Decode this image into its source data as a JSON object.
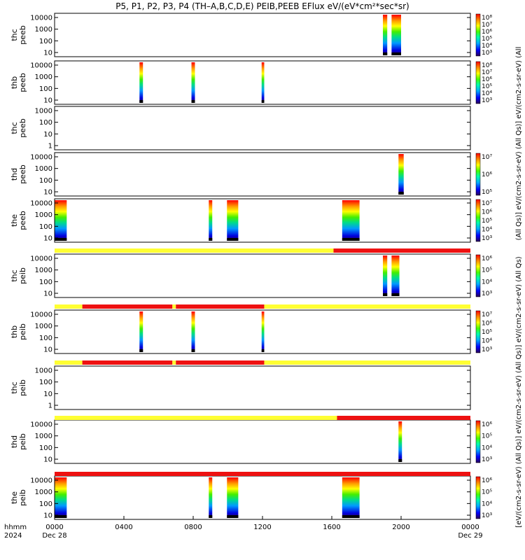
{
  "title": "P5, P1, P2, P3, P4 (TH–A,B,C,D,E) PEIB,PEEB EFlux eV/(eV*cm²*sec*sr)",
  "side_label_top": "(All Qs)] eV/(cm2-s-sr-eV) (All Qs)] eV/(cm2-s-sr-eV) (All",
  "side_label_bottom": "[eV/(cm2-s-sr-eV) (All Qs)] eV/(cm2-s-sr-eV) (All Qs)] eV/(cm2-s-sr-eV) (All Qs)",
  "colors": {
    "flag_yellow": "#ffff33",
    "flag_red": "#ee1111"
  },
  "chart_data": {
    "type": "heatmap",
    "x_ticks": [
      "0000",
      "0400",
      "0800",
      "1200",
      "1600",
      "2000",
      "0000"
    ],
    "x_range_hours": [
      0,
      24
    ],
    "x_date_labels": {
      "start": "Dec 28",
      "end": "Dec 29"
    },
    "x_corner_labels": [
      "hhmm",
      "2024"
    ],
    "panels": [
      {
        "name": "thc peeb",
        "ylabel": [
          "thc",
          "peeb"
        ],
        "yticks": [
          "10000",
          "1000",
          "100",
          "10"
        ],
        "cb_ticks": [
          "10⁸",
          "10⁷",
          "10⁶",
          "10⁵",
          "10⁴",
          "10³"
        ],
        "intervals": [
          {
            "start": 18.95,
            "end": 19.2
          },
          {
            "start": 19.45,
            "end": 20.0
          }
        ]
      },
      {
        "name": "thb peeb",
        "ylabel": [
          "thb",
          "peeb"
        ],
        "yticks": [
          "10000",
          "1000",
          "100",
          "10"
        ],
        "cb_ticks": [
          "10⁸",
          "10⁷",
          "10⁶",
          "10⁵",
          "10⁴",
          "10³"
        ],
        "intervals": [
          {
            "start": 4.9,
            "end": 5.1
          },
          {
            "start": 7.9,
            "end": 8.1
          },
          {
            "start": 11.95,
            "end": 12.1
          }
        ]
      },
      {
        "name": "thc peeb 2",
        "ylabel": [
          "thc",
          "peeb"
        ],
        "yticks": [
          "1000",
          "100",
          "10",
          "1"
        ],
        "cb_ticks": [],
        "intervals": []
      },
      {
        "name": "thd peeb",
        "ylabel": [
          "thd",
          "peeb"
        ],
        "yticks": [
          "10000",
          "1000",
          "100",
          "10"
        ],
        "cb_ticks": [
          "10⁷",
          "10⁶",
          "10⁵"
        ],
        "intervals": [
          {
            "start": 19.85,
            "end": 20.15
          }
        ]
      },
      {
        "name": "the peeb",
        "ylabel": [
          "the",
          "peeb"
        ],
        "yticks": [
          "10000",
          "1000",
          "100",
          "10"
        ],
        "cb_ticks": [
          "10⁷",
          "10⁶",
          "10⁵",
          "10⁴",
          "10³"
        ],
        "intervals": [
          {
            "start": 0.0,
            "end": 0.7
          },
          {
            "start": 8.9,
            "end": 9.1
          },
          {
            "start": 9.95,
            "end": 10.6
          },
          {
            "start": 16.6,
            "end": 17.6
          }
        ]
      },
      {
        "name": "thc peib",
        "ylabel": [
          "thc",
          "peib"
        ],
        "yticks": [
          "10000",
          "1000",
          "100",
          "10"
        ],
        "cb_ticks": [
          "10⁶",
          "10⁵",
          "10⁴",
          "10³"
        ],
        "intervals": [
          {
            "start": 18.95,
            "end": 19.2
          },
          {
            "start": 19.45,
            "end": 19.9
          }
        ]
      },
      {
        "name": "thb peib",
        "ylabel": [
          "thb",
          "peib"
        ],
        "yticks": [
          "10000",
          "1000",
          "100",
          "10"
        ],
        "cb_ticks": [
          "10⁷",
          "10⁶",
          "10⁵",
          "10⁴",
          "10³"
        ],
        "intervals": [
          {
            "start": 4.9,
            "end": 5.1
          },
          {
            "start": 7.9,
            "end": 8.1
          },
          {
            "start": 11.95,
            "end": 12.1
          }
        ]
      },
      {
        "name": "thc peib 2",
        "ylabel": [
          "thc",
          "peib"
        ],
        "yticks": [
          "1000",
          "100",
          "10",
          "1"
        ],
        "cb_ticks": [],
        "intervals": []
      },
      {
        "name": "thd peib",
        "ylabel": [
          "thd",
          "peib"
        ],
        "yticks": [
          "10000",
          "1000",
          "100",
          "10"
        ],
        "cb_ticks": [
          "10⁶",
          "10⁵",
          "10⁴",
          "10³"
        ],
        "intervals": [
          {
            "start": 19.85,
            "end": 20.05
          }
        ]
      },
      {
        "name": "the peib",
        "ylabel": [
          "the",
          "peib"
        ],
        "yticks": [
          "10000",
          "1000",
          "100",
          "10"
        ],
        "cb_ticks": [
          "10⁶",
          "10⁵",
          "10⁴",
          "10³"
        ],
        "intervals": [
          {
            "start": 0.0,
            "end": 0.7
          },
          {
            "start": 8.9,
            "end": 9.1
          },
          {
            "start": 9.95,
            "end": 10.6
          },
          {
            "start": 16.6,
            "end": 17.6
          }
        ]
      }
    ],
    "flag_bars": [
      {
        "after_panel": 4,
        "segments": [
          {
            "start": 0,
            "end": 16.1,
            "color": "yellow"
          },
          {
            "start": 16.1,
            "end": 24,
            "color": "red"
          }
        ]
      },
      {
        "after_panel": 5,
        "segments": [
          {
            "start": 0,
            "end": 1.6,
            "color": "yellow"
          },
          {
            "start": 1.6,
            "end": 6.8,
            "color": "red"
          },
          {
            "start": 6.8,
            "end": 7.0,
            "color": "yellow"
          },
          {
            "start": 7.0,
            "end": 12.1,
            "color": "red"
          },
          {
            "start": 12.1,
            "end": 24,
            "color": "yellow"
          }
        ]
      },
      {
        "after_panel": 6,
        "segments": [
          {
            "start": 0,
            "end": 1.6,
            "color": "yellow"
          },
          {
            "start": 1.6,
            "end": 6.8,
            "color": "red"
          },
          {
            "start": 6.8,
            "end": 7.0,
            "color": "yellow"
          },
          {
            "start": 7.0,
            "end": 12.1,
            "color": "red"
          },
          {
            "start": 12.1,
            "end": 24,
            "color": "yellow"
          }
        ]
      },
      {
        "after_panel": 7,
        "segments": [
          {
            "start": 0,
            "end": 16.3,
            "color": "yellow"
          },
          {
            "start": 16.3,
            "end": 24,
            "color": "red"
          }
        ]
      },
      {
        "after_panel": 8,
        "segments": [
          {
            "start": 0,
            "end": 24,
            "color": "red"
          }
        ]
      }
    ]
  }
}
